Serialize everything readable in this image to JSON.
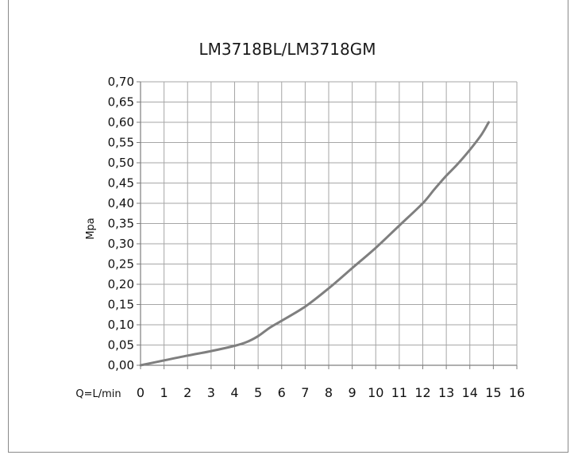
{
  "chart_data": {
    "type": "line",
    "title": "LM3718BL/LM3718GM",
    "xlabel": "Q=L/min",
    "ylabel": "Mpa",
    "xlim": [
      0,
      16
    ],
    "ylim": [
      0,
      0.7
    ],
    "x_ticks": [
      "0",
      "1",
      "2",
      "3",
      "4",
      "5",
      "6",
      "7",
      "8",
      "9",
      "10",
      "11",
      "12",
      "13",
      "14",
      "15",
      "16"
    ],
    "y_ticks": [
      "0,00",
      "0,05",
      "0,10",
      "0,15",
      "0,20",
      "0,25",
      "0,30",
      "0,35",
      "0,40",
      "0,45",
      "0,50",
      "0,55",
      "0,60",
      "0,65",
      "0,70"
    ],
    "grid": true,
    "line_color": "#7f7f7f",
    "series": [
      {
        "x": [
          0,
          1,
          2,
          3,
          4,
          4.5,
          5,
          5.5,
          6,
          7,
          8,
          9,
          10,
          11,
          12,
          12.5,
          13,
          13.5,
          14,
          14.5,
          14.8
        ],
        "y": [
          0,
          0.012,
          0.024,
          0.035,
          0.048,
          0.057,
          0.072,
          0.093,
          0.11,
          0.145,
          0.19,
          0.24,
          0.29,
          0.345,
          0.4,
          0.435,
          0.468,
          0.498,
          0.532,
          0.57,
          0.6
        ]
      }
    ]
  }
}
